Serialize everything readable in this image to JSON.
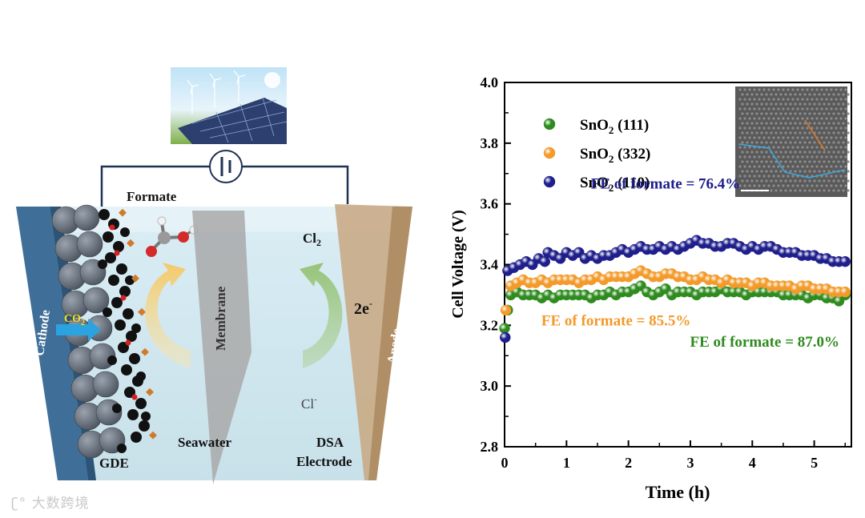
{
  "diagram": {
    "labels": {
      "formate": "Formate",
      "cathode": "Cathode",
      "co2": "CO",
      "co2_sub": "2",
      "gde": "GDE",
      "membrane": "Membrane",
      "seawater": "Seawater",
      "cl2": "Cl",
      "cl2_sub": "2",
      "electrons": "2e",
      "electrons_sup": "-",
      "chloride": "Cl",
      "chloride_sup": "-",
      "dsa_line1": "DSA",
      "dsa_line2": "Electrode",
      "anode": "Anode"
    }
  },
  "chart_data": {
    "type": "scatter",
    "xlabel": "Time (h)",
    "ylabel": "Cell Voltage (V)",
    "xlim": [
      0,
      5.6
    ],
    "ylim": [
      2.8,
      4.0
    ],
    "xticks": [
      "0",
      "1",
      "2",
      "3",
      "4",
      "5"
    ],
    "yticks": [
      "2.8",
      "3.0",
      "3.2",
      "3.4",
      "3.6",
      "3.8",
      "4.0"
    ],
    "legend_position": "top-left",
    "series": [
      {
        "name": "SnO",
        "sub": "2",
        "facet": " (111)",
        "color": "#2e8b1e",
        "x": [
          0.0,
          0.05,
          0.1,
          0.2,
          0.3,
          0.4,
          0.5,
          0.6,
          0.7,
          0.8,
          0.9,
          1.0,
          1.1,
          1.2,
          1.3,
          1.4,
          1.5,
          1.6,
          1.7,
          1.8,
          1.9,
          2.0,
          2.1,
          2.2,
          2.3,
          2.4,
          2.5,
          2.6,
          2.7,
          2.8,
          2.9,
          3.0,
          3.1,
          3.2,
          3.3,
          3.4,
          3.5,
          3.6,
          3.7,
          3.8,
          3.9,
          4.0,
          4.1,
          4.2,
          4.3,
          4.4,
          4.5,
          4.6,
          4.7,
          4.8,
          4.9,
          5.0,
          5.1,
          5.2,
          5.3,
          5.4,
          5.5
        ],
        "y": [
          3.19,
          3.25,
          3.3,
          3.31,
          3.3,
          3.3,
          3.3,
          3.29,
          3.3,
          3.29,
          3.3,
          3.3,
          3.3,
          3.3,
          3.3,
          3.29,
          3.3,
          3.3,
          3.31,
          3.3,
          3.31,
          3.31,
          3.32,
          3.33,
          3.31,
          3.3,
          3.31,
          3.32,
          3.3,
          3.31,
          3.31,
          3.31,
          3.3,
          3.31,
          3.31,
          3.31,
          3.32,
          3.31,
          3.31,
          3.31,
          3.3,
          3.31,
          3.31,
          3.31,
          3.31,
          3.31,
          3.3,
          3.3,
          3.3,
          3.3,
          3.29,
          3.3,
          3.3,
          3.29,
          3.29,
          3.28,
          3.3
        ]
      },
      {
        "name": "SnO",
        "sub": "2",
        "facet": " (332)",
        "color": "#f39a2a",
        "x": [
          0.02,
          0.1,
          0.2,
          0.3,
          0.4,
          0.5,
          0.6,
          0.7,
          0.8,
          0.9,
          1.0,
          1.1,
          1.2,
          1.3,
          1.4,
          1.5,
          1.6,
          1.7,
          1.8,
          1.9,
          2.0,
          2.1,
          2.2,
          2.3,
          2.4,
          2.5,
          2.6,
          2.7,
          2.8,
          2.9,
          3.0,
          3.1,
          3.2,
          3.3,
          3.4,
          3.5,
          3.6,
          3.7,
          3.8,
          3.9,
          4.0,
          4.1,
          4.2,
          4.3,
          4.4,
          4.5,
          4.6,
          4.7,
          4.8,
          4.9,
          5.0,
          5.1,
          5.2,
          5.3,
          5.4,
          5.5
        ],
        "y": [
          3.25,
          3.33,
          3.34,
          3.35,
          3.34,
          3.34,
          3.35,
          3.34,
          3.35,
          3.35,
          3.35,
          3.35,
          3.34,
          3.35,
          3.35,
          3.36,
          3.35,
          3.36,
          3.36,
          3.36,
          3.36,
          3.37,
          3.38,
          3.37,
          3.36,
          3.36,
          3.37,
          3.37,
          3.36,
          3.36,
          3.35,
          3.35,
          3.36,
          3.35,
          3.35,
          3.34,
          3.35,
          3.34,
          3.34,
          3.34,
          3.33,
          3.34,
          3.34,
          3.33,
          3.33,
          3.33,
          3.33,
          3.32,
          3.33,
          3.33,
          3.32,
          3.32,
          3.32,
          3.31,
          3.31,
          3.31
        ]
      },
      {
        "name": "SnO",
        "sub": "2",
        "facet": " (110)",
        "color": "#1e1e8c",
        "x": [
          0.01,
          0.05,
          0.15,
          0.25,
          0.35,
          0.45,
          0.55,
          0.65,
          0.7,
          0.8,
          0.9,
          1.0,
          1.1,
          1.2,
          1.3,
          1.4,
          1.5,
          1.6,
          1.7,
          1.8,
          1.9,
          2.0,
          2.1,
          2.2,
          2.3,
          2.4,
          2.5,
          2.6,
          2.7,
          2.8,
          2.9,
          3.0,
          3.1,
          3.2,
          3.3,
          3.4,
          3.5,
          3.6,
          3.7,
          3.8,
          3.9,
          4.0,
          4.1,
          4.2,
          4.3,
          4.4,
          4.5,
          4.6,
          4.7,
          4.8,
          4.9,
          5.0,
          5.1,
          5.2,
          5.3,
          5.4,
          5.5
        ],
        "y": [
          3.16,
          3.38,
          3.39,
          3.4,
          3.41,
          3.4,
          3.42,
          3.41,
          3.44,
          3.43,
          3.42,
          3.44,
          3.43,
          3.44,
          3.42,
          3.43,
          3.42,
          3.43,
          3.43,
          3.44,
          3.45,
          3.44,
          3.45,
          3.46,
          3.45,
          3.45,
          3.46,
          3.45,
          3.46,
          3.45,
          3.46,
          3.47,
          3.48,
          3.47,
          3.47,
          3.46,
          3.46,
          3.47,
          3.47,
          3.46,
          3.45,
          3.46,
          3.45,
          3.46,
          3.46,
          3.45,
          3.44,
          3.44,
          3.44,
          3.43,
          3.43,
          3.43,
          3.42,
          3.42,
          3.41,
          3.41,
          3.41
        ]
      }
    ],
    "annotations": [
      {
        "text": "FE of formate = 76.4%",
        "color": "#1e1e8c",
        "x": 2.6,
        "y": 3.65
      },
      {
        "text": "FE of formate = 85.5%",
        "color": "#f39a2a",
        "x": 1.8,
        "y": 3.2
      },
      {
        "text": "FE of formate = 87.0%",
        "color": "#2e8b1e",
        "x": 4.2,
        "y": 3.13
      }
    ]
  },
  "watermark": "大数跨境"
}
